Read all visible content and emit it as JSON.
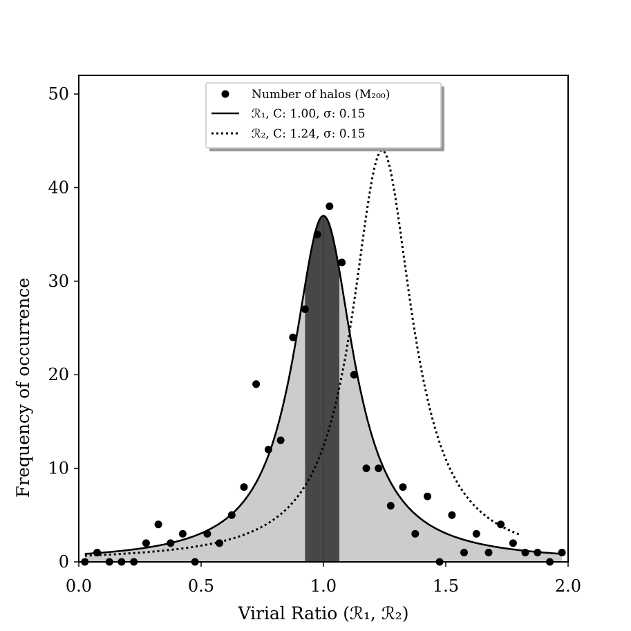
{
  "chart_data": {
    "type": "scatter",
    "xlabel": "Virial Ratio (ℛ₁, ℛ₂)",
    "ylabel": "Frequency of occurrence",
    "xlim": [
      0.0,
      2.0
    ],
    "ylim": [
      0,
      52
    ],
    "xticks": [
      0.0,
      0.5,
      1.0,
      1.5,
      2.0
    ],
    "xtick_labels": [
      "0.0",
      "0.5",
      "1.0",
      "1.5",
      "2.0"
    ],
    "yticks": [
      0,
      10,
      20,
      30,
      40,
      50
    ],
    "ytick_labels": [
      "0",
      "10",
      "20",
      "30",
      "40",
      "50"
    ],
    "legend": {
      "location": "top-center",
      "entries": [
        {
          "marker": "dot",
          "label": "Number of halos (M₂₀₀)"
        },
        {
          "marker": "solid-line",
          "label": "ℛ₁, C: 1.00, σ: 0.15"
        },
        {
          "marker": "dotted-line",
          "label": "ℛ₂, C: 1.24, σ: 0.15"
        }
      ]
    },
    "scatter_series": {
      "name": "Number of halos (M200)",
      "x": [
        0.025,
        0.075,
        0.125,
        0.175,
        0.225,
        0.275,
        0.325,
        0.375,
        0.425,
        0.475,
        0.525,
        0.575,
        0.625,
        0.675,
        0.725,
        0.775,
        0.825,
        0.875,
        0.925,
        0.975,
        1.025,
        1.075,
        1.125,
        1.175,
        1.225,
        1.275,
        1.325,
        1.375,
        1.425,
        1.475,
        1.525,
        1.575,
        1.625,
        1.675,
        1.725,
        1.775,
        1.825,
        1.875,
        1.925,
        1.975
      ],
      "y": [
        0,
        1,
        0,
        0,
        0,
        2,
        4,
        2,
        3,
        0,
        3,
        2,
        5,
        8,
        19,
        12,
        13,
        24,
        27,
        35,
        38,
        32,
        20,
        10,
        10,
        6,
        8,
        3,
        7,
        0,
        5,
        1,
        3,
        1,
        4,
        2,
        1,
        1,
        0,
        1
      ]
    },
    "curves": [
      {
        "name": "ℛ₁",
        "style": "solid",
        "center": 1.0,
        "sigma": 0.15,
        "peak": 37,
        "x_range": [
          0.025,
          1.975
        ],
        "fill": true
      },
      {
        "name": "ℛ₂",
        "style": "dotted",
        "center": 1.24,
        "sigma": 0.15,
        "peak": 44,
        "x_range": [
          0.025,
          1.8
        ],
        "fill": false
      }
    ],
    "band": {
      "x_start": 0.925,
      "x_end": 1.065,
      "color": "#474747"
    },
    "band_center_line": 1.0,
    "colors": {
      "fill": "#cccccc",
      "band": "#474747",
      "markers": "#000000"
    }
  }
}
